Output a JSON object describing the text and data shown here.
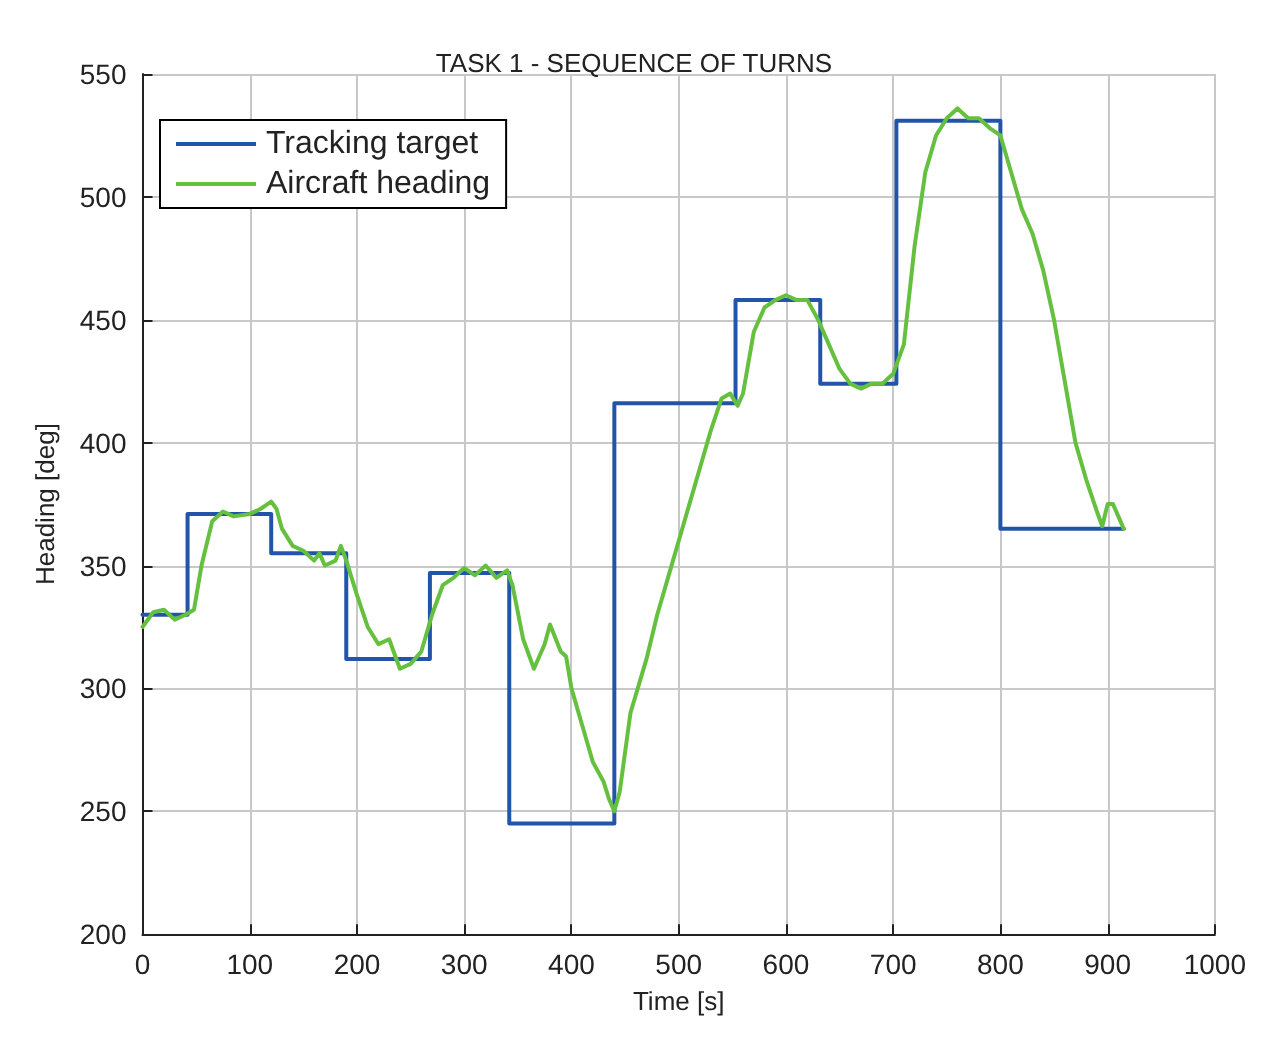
{
  "chart_data": {
    "type": "line",
    "title": "TASK 1 - SEQUENCE OF TURNS",
    "xlabel": "Time [s]",
    "ylabel": "Heading [deg]",
    "xlim": [
      0,
      1000
    ],
    "xticks": [
      0,
      100,
      200,
      300,
      400,
      500,
      600,
      700,
      800,
      900,
      1000
    ],
    "ylim": [
      200,
      550
    ],
    "yticks": [
      200,
      250,
      300,
      350,
      400,
      450,
      500,
      550
    ],
    "grid": true,
    "legend": "top left",
    "series": [
      {
        "name": "Tracking target",
        "type": "step",
        "color": "#2255aa",
        "x": [
          0,
          42,
          120,
          190,
          268,
          342,
          440,
          553,
          632,
          703,
          800,
          915
        ],
        "values": [
          330,
          371,
          355,
          312,
          347,
          245,
          416,
          458,
          424,
          531,
          365,
          365
        ]
      },
      {
        "name": "Aircraft heading",
        "type": "line",
        "color": "#66c040",
        "x": [
          0,
          10,
          20,
          30,
          40,
          48,
          55,
          65,
          75,
          85,
          100,
          110,
          120,
          125,
          130,
          140,
          150,
          160,
          165,
          170,
          180,
          185,
          190,
          200,
          210,
          220,
          230,
          240,
          250,
          260,
          270,
          280,
          290,
          300,
          310,
          320,
          330,
          340,
          345,
          355,
          365,
          375,
          380,
          390,
          395,
          400,
          410,
          420,
          430,
          435,
          440,
          445,
          455,
          470,
          480,
          490,
          500,
          510,
          520,
          530,
          540,
          548,
          555,
          560,
          570,
          580,
          590,
          600,
          610,
          620,
          630,
          640,
          650,
          660,
          670,
          680,
          690,
          700,
          710,
          720,
          730,
          740,
          750,
          760,
          770,
          780,
          790,
          800,
          810,
          820,
          830,
          840,
          850,
          860,
          870,
          880,
          890,
          895,
          900,
          905,
          910,
          915
        ],
        "values": [
          325,
          331,
          332,
          328,
          330,
          332,
          350,
          368,
          372,
          370,
          371,
          373,
          376,
          373,
          365,
          358,
          356,
          352,
          355,
          350,
          352,
          358,
          352,
          338,
          325,
          318,
          320,
          308,
          310,
          315,
          330,
          342,
          345,
          349,
          346,
          350,
          345,
          348,
          342,
          320,
          308,
          318,
          326,
          315,
          313,
          300,
          285,
          270,
          262,
          255,
          250,
          258,
          290,
          312,
          330,
          345,
          360,
          375,
          390,
          405,
          418,
          420,
          415,
          420,
          445,
          455,
          458,
          460,
          458,
          458,
          450,
          440,
          430,
          424,
          422,
          424,
          424,
          428,
          440,
          480,
          510,
          525,
          532,
          536,
          532,
          532,
          528,
          525,
          510,
          495,
          485,
          470,
          450,
          425,
          400,
          385,
          372,
          366,
          375,
          375,
          370,
          365
        ]
      }
    ]
  }
}
